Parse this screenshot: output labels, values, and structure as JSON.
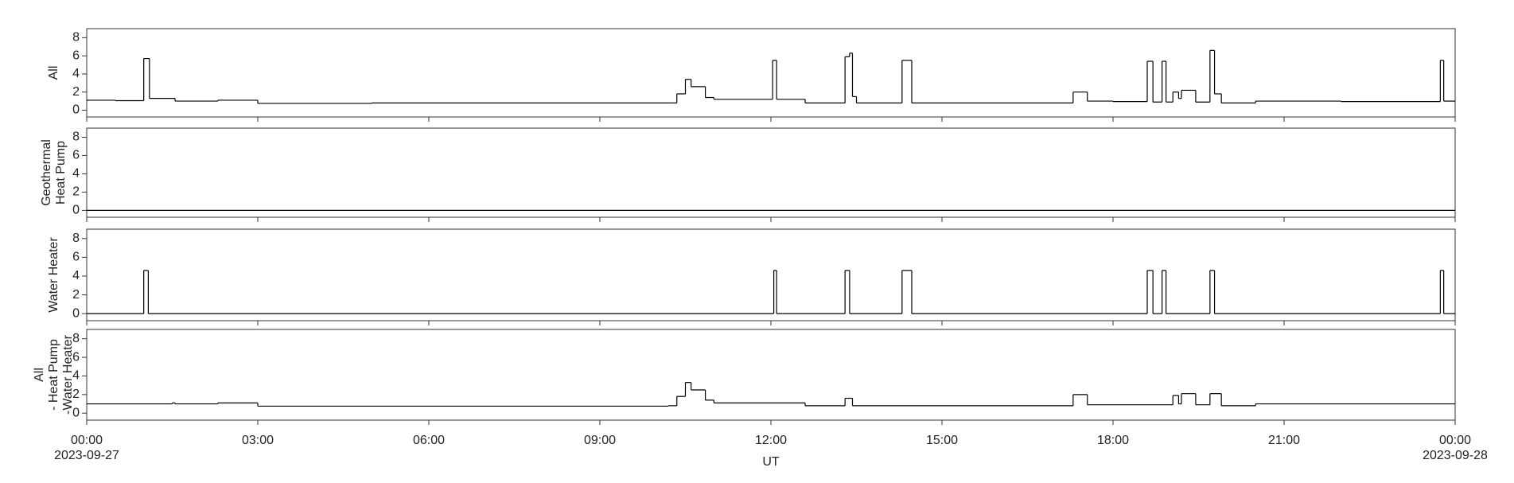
{
  "chart_data": [
    {
      "type": "step",
      "ylabel": [
        "All"
      ],
      "ylim": [
        -0.75,
        9
      ],
      "yticks": [
        0,
        2,
        4,
        6,
        8
      ],
      "x": [
        0,
        0.5,
        1.0,
        1.1,
        1.55,
        2.3,
        3.0,
        5.0,
        10.2,
        10.35,
        10.5,
        10.6,
        10.85,
        11.0,
        12.03,
        12.1,
        12.6,
        13.3,
        13.38,
        13.43,
        13.5,
        14.3,
        14.47,
        17.3,
        17.55,
        18.0,
        18.6,
        18.7,
        18.86,
        18.93,
        19.05,
        19.15,
        19.2,
        19.45,
        19.7,
        19.78,
        19.9,
        20.5,
        22,
        23.74,
        23.8,
        24
      ],
      "values": [
        1.1,
        1.05,
        5.7,
        1.3,
        1.0,
        1.1,
        0.75,
        0.8,
        0.8,
        1.8,
        3.4,
        2.6,
        1.4,
        1.2,
        5.5,
        1.2,
        0.8,
        5.9,
        6.3,
        1.5,
        0.8,
        5.5,
        0.8,
        2.0,
        1.0,
        0.95,
        5.4,
        0.9,
        5.4,
        0.9,
        2.0,
        1.3,
        2.2,
        0.9,
        6.6,
        1.8,
        0.8,
        1.0,
        0.95,
        5.5,
        1.0,
        1.0
      ]
    },
    {
      "type": "step",
      "ylabel": [
        "Geothermal",
        "Heat Pump"
      ],
      "ylim": [
        -0.75,
        9
      ],
      "yticks": [
        0,
        2,
        4,
        6,
        8
      ],
      "x": [
        0,
        24
      ],
      "values": [
        0,
        0
      ]
    },
    {
      "type": "step",
      "ylabel": [
        "Water Heater"
      ],
      "ylim": [
        -0.75,
        9
      ],
      "yticks": [
        0,
        2,
        4,
        6,
        8
      ],
      "x": [
        0,
        1.0,
        1.08,
        12.05,
        12.1,
        13.3,
        13.38,
        14.3,
        14.47,
        18.6,
        18.7,
        18.86,
        18.93,
        19.7,
        19.78,
        23.74,
        23.8,
        24
      ],
      "values": [
        0,
        4.6,
        0,
        4.6,
        0,
        4.6,
        0,
        4.6,
        0,
        4.6,
        0,
        4.6,
        0,
        4.6,
        0,
        4.6,
        0,
        0
      ]
    },
    {
      "type": "step",
      "ylabel": [
        "All",
        "- Heat Pump",
        "-Water Heater"
      ],
      "ylim": [
        -0.75,
        9
      ],
      "yticks": [
        0,
        2,
        4,
        6,
        8
      ],
      "x": [
        0,
        1.5,
        1.55,
        2.3,
        3.0,
        10.2,
        10.35,
        10.5,
        10.6,
        10.85,
        11.0,
        12.6,
        13.3,
        13.43,
        17.3,
        17.55,
        19.05,
        19.15,
        19.2,
        19.45,
        19.7,
        19.9,
        20.5,
        24
      ],
      "values": [
        1.0,
        1.1,
        1.0,
        1.1,
        0.75,
        0.8,
        1.8,
        3.3,
        2.5,
        1.4,
        1.1,
        0.8,
        1.6,
        0.8,
        2.0,
        0.9,
        1.9,
        1.0,
        2.1,
        0.9,
        2.1,
        0.8,
        1.0,
        1.0
      ],
      "xlim": [
        0,
        24
      ],
      "xticks": [
        {
          "value": 0,
          "label": "00:00"
        },
        {
          "value": 3,
          "label": "03:00"
        },
        {
          "value": 6,
          "label": "06:00"
        },
        {
          "value": 9,
          "label": "09:00"
        },
        {
          "value": 12,
          "label": "12:00"
        },
        {
          "value": 15,
          "label": "15:00"
        },
        {
          "value": 18,
          "label": "18:00"
        },
        {
          "value": 21,
          "label": "21:00"
        },
        {
          "value": 24,
          "label": "00:00"
        }
      ],
      "date_labels": [
        {
          "value": 0,
          "label": "2023-09-27"
        },
        {
          "value": 24,
          "label": "2023-09-28"
        }
      ],
      "xlabel": "UT"
    }
  ]
}
